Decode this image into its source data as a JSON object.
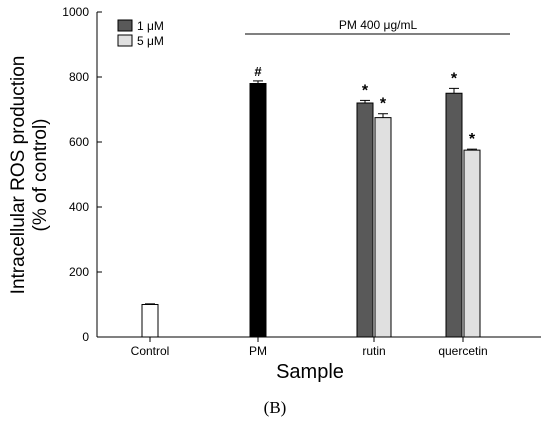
{
  "chart_data": {
    "type": "bar",
    "xlabel": "Sample",
    "ylabel_lines": [
      "Intracellular ROS production",
      "(% of control)"
    ],
    "ylim": [
      0,
      1000
    ],
    "yticks": [
      0,
      200,
      400,
      600,
      800,
      1000
    ],
    "categories": [
      "Control",
      "PM",
      "rutin",
      "quercetin"
    ],
    "bars": [
      {
        "category": "Control",
        "series": "none",
        "value": 100,
        "error": 2,
        "label": ""
      },
      {
        "category": "PM",
        "series": "PM",
        "value": 780,
        "error": 8,
        "label": "#"
      },
      {
        "category": "rutin",
        "series": "1 μM",
        "value": 720,
        "error": 8,
        "label": "*"
      },
      {
        "category": "rutin",
        "series": "5 μM",
        "value": 675,
        "error": 12,
        "label": "*"
      },
      {
        "category": "quercetin",
        "series": "1 μM",
        "value": 750,
        "error": 15,
        "label": "*"
      },
      {
        "category": "quercetin",
        "series": "5 μM",
        "value": 575,
        "error": 3,
        "label": "*"
      }
    ],
    "legend": [
      {
        "name": "1 μM",
        "color": "#595959"
      },
      {
        "name": "5 μM",
        "color": "#e0e0e0"
      }
    ],
    "annotation": "PM 400 μg/mL",
    "colors": {
      "control": "#ffffff",
      "PM": "#000000",
      "1 μM": "#595959",
      "5 μM": "#e0e0e0"
    },
    "panel_label": "(B)"
  }
}
